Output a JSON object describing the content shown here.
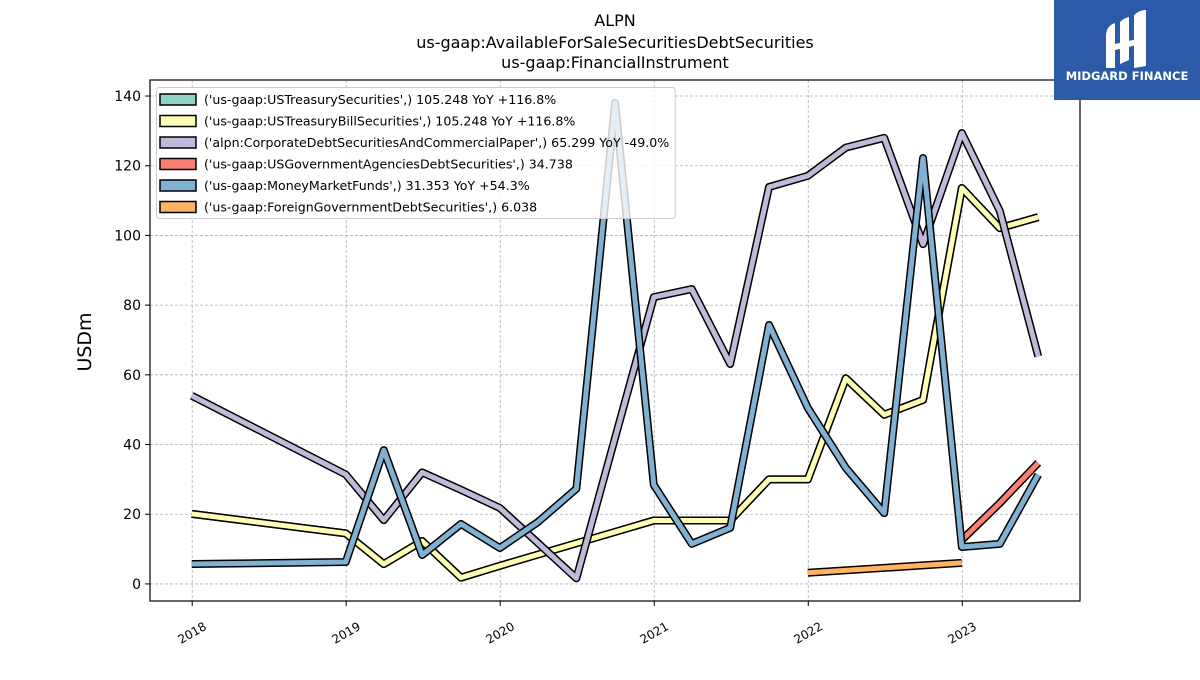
{
  "brand": {
    "name": "MIDGARD FINANCE",
    "icon": "midgard-logo-mark",
    "background": "#2b5ba8"
  },
  "chart_data": {
    "type": "line",
    "title_lines": [
      "ALPN",
      "us-gaap:AvailableForSaleSecuritiesDebtSecurities",
      "us-gaap:FinancialInstrument"
    ],
    "xlabel": "",
    "ylabel": "USDm",
    "xticks": [
      "2018",
      "2019",
      "2020",
      "2021",
      "2022",
      "2023"
    ],
    "yticks": [
      0,
      20,
      40,
      60,
      80,
      100,
      120,
      140
    ],
    "xlim": [
      "2017-09-23",
      "2023-10-07"
    ],
    "ylim": [
      -4.9,
      144.6
    ],
    "grid": true,
    "legend_position": "upper-left",
    "series": [
      {
        "name": "('us-gaap:USTreasurySecurities',) 105.248 YoY +116.8%",
        "color": "#8dd3c7",
        "x": [
          "2017-12-31",
          "2018-12-31",
          "2019-03-31",
          "2019-06-30",
          "2019-09-30",
          "2019-12-31",
          "2020-12-31",
          "2021-03-31",
          "2021-06-30",
          "2021-09-30",
          "2021-12-31",
          "2022-03-31",
          "2022-06-30",
          "2022-09-30",
          "2022-12-31",
          "2023-03-31",
          "2023-06-30"
        ],
        "y": [
          20.1,
          14.5,
          5.7,
          12.3,
          1.8,
          5.2,
          18.2,
          18.2,
          18.2,
          30.0,
          30.0,
          59.0,
          48.55,
          52.8,
          113.6,
          102.1,
          105.248
        ]
      },
      {
        "name": "('us-gaap:USTreasuryBillSecurities',) 105.248 YoY +116.8%",
        "color": "#ffffb3",
        "x": [
          "2017-12-31",
          "2018-12-31",
          "2019-03-31",
          "2019-06-30",
          "2019-09-30",
          "2019-12-31",
          "2020-12-31",
          "2021-03-31",
          "2021-06-30",
          "2021-09-30",
          "2021-12-31",
          "2022-03-31",
          "2022-06-30",
          "2022-09-30",
          "2022-12-31",
          "2023-03-31",
          "2023-06-30"
        ],
        "y": [
          20.1,
          14.5,
          5.7,
          12.3,
          1.8,
          5.2,
          18.2,
          18.2,
          18.2,
          30.0,
          30.0,
          59.0,
          48.55,
          52.8,
          113.6,
          102.1,
          105.248
        ]
      },
      {
        "name": "('alpn:CorporateDebtSecuritiesAndCommercialPaper',) 65.299 YoY -49.0%",
        "color": "#bebada",
        "x": [
          "2017-12-31",
          "2018-12-31",
          "2019-03-31",
          "2019-06-30",
          "2019-09-30",
          "2019-12-31",
          "2020-06-30",
          "2020-12-31",
          "2021-03-31",
          "2021-06-30",
          "2021-09-30",
          "2021-12-31",
          "2022-03-31",
          "2022-06-30",
          "2022-09-30",
          "2022-12-31",
          "2023-03-31",
          "2023-06-30"
        ],
        "y": [
          54.0,
          31.4,
          18.3,
          32.0,
          27.0,
          21.8,
          1.6,
          82.3,
          84.6,
          63.1,
          113.9,
          117.1,
          125.2,
          128.0,
          97.5,
          129.4,
          107.0,
          65.299
        ]
      },
      {
        "name": "('us-gaap:USGovernmentAgenciesDebtSecurities',) 34.738",
        "color": "#fb8072",
        "x": [
          "2022-12-31",
          "2023-03-31",
          "2023-06-30"
        ],
        "y": [
          12.6,
          23.2,
          34.738
        ]
      },
      {
        "name": "('us-gaap:MoneyMarketFunds',) 31.353 YoY +54.3%",
        "color": "#80b1d3",
        "x": [
          "2017-12-31",
          "2018-12-31",
          "2019-03-31",
          "2019-06-30",
          "2019-09-30",
          "2019-12-31",
          "2020-03-31",
          "2020-06-30",
          "2020-09-30",
          "2020-12-31",
          "2021-03-31",
          "2021-06-30",
          "2021-09-30",
          "2021-12-31",
          "2022-03-31",
          "2022-06-30",
          "2022-09-30",
          "2022-12-31",
          "2023-03-31",
          "2023-06-30"
        ],
        "y": [
          5.7,
          6.3,
          38.4,
          8.3,
          17.2,
          10.3,
          17.8,
          27.3,
          138.0,
          28.4,
          11.5,
          16.1,
          74.3,
          50.5,
          33.3,
          20.3,
          122.2,
          10.6,
          11.5,
          31.353
        ]
      },
      {
        "name": "('us-gaap:ForeignGovernmentDebtSecurities',) 6.038",
        "color": "#fdb462",
        "x": [
          "2021-12-31",
          "2022-12-31"
        ],
        "y": [
          3.2,
          6.038
        ]
      }
    ]
  }
}
